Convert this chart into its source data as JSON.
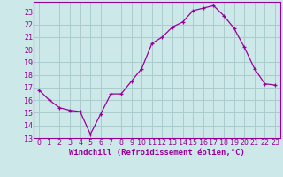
{
  "x": [
    0,
    1,
    2,
    3,
    4,
    5,
    6,
    7,
    8,
    9,
    10,
    11,
    12,
    13,
    14,
    15,
    16,
    17,
    18,
    19,
    20,
    21,
    22,
    23
  ],
  "y": [
    16.8,
    16.0,
    15.4,
    15.2,
    15.1,
    13.3,
    14.9,
    16.5,
    16.5,
    17.5,
    18.5,
    20.5,
    21.0,
    21.8,
    22.2,
    23.1,
    23.3,
    23.5,
    22.7,
    21.7,
    20.2,
    18.5,
    17.3,
    17.2
  ],
  "line_color": "#990099",
  "marker": "+",
  "bg_color": "#cce8e8",
  "grid_color": "#aacccc",
  "xlabel": "Windchill (Refroidissement éolien,°C)",
  "ylim": [
    13,
    23.8
  ],
  "xlim": [
    -0.5,
    23.5
  ],
  "yticks": [
    13,
    14,
    15,
    16,
    17,
    18,
    19,
    20,
    21,
    22,
    23
  ],
  "xticks": [
    0,
    1,
    2,
    3,
    4,
    5,
    6,
    7,
    8,
    9,
    10,
    11,
    12,
    13,
    14,
    15,
    16,
    17,
    18,
    19,
    20,
    21,
    22,
    23
  ],
  "xlabel_fontsize": 6.5,
  "tick_fontsize": 6.0,
  "font_family": "monospace"
}
